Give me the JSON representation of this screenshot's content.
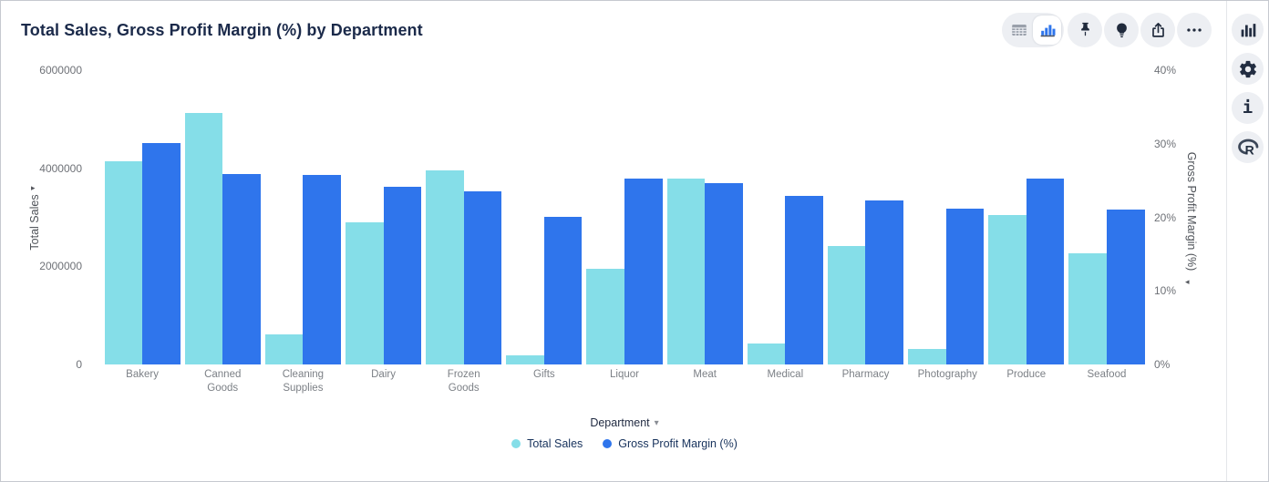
{
  "header": {
    "title": "Total Sales, Gross Profit Margin (%) by Department"
  },
  "toolbar": {
    "view_toggle": {
      "options": [
        "table",
        "chart"
      ],
      "selected": "chart"
    },
    "buttons": [
      {
        "name": "pin",
        "icon": "pin-icon"
      },
      {
        "name": "suggestions",
        "icon": "lightbulb-icon"
      },
      {
        "name": "export",
        "icon": "share-icon"
      },
      {
        "name": "more-options",
        "icon": "ellipsis-icon"
      }
    ]
  },
  "right_sidebar": {
    "buttons": [
      {
        "name": "chart-type",
        "icon": "bar-chart-icon"
      },
      {
        "name": "settings",
        "icon": "gear-icon"
      },
      {
        "name": "info",
        "icon": "info-icon"
      },
      {
        "name": "r-analytics",
        "icon": "r-logo-icon"
      }
    ]
  },
  "chart_data": {
    "type": "bar",
    "title": "Total Sales, Gross Profit Margin (%) by Department",
    "categories": [
      "Bakery",
      "Canned Goods",
      "Cleaning Supplies",
      "Dairy",
      "Frozen Goods",
      "Gifts",
      "Liquor",
      "Meat",
      "Medical",
      "Pharmacy",
      "Photography",
      "Produce",
      "Seafood"
    ],
    "series": [
      {
        "name": "Total Sales",
        "axis": "left",
        "color": "#85DEE8",
        "values": [
          4140000,
          5120000,
          615000,
          2900000,
          3960000,
          180000,
          1960000,
          3790000,
          430000,
          2420000,
          320000,
          3050000,
          2260000
        ]
      },
      {
        "name": "Gross Profit Margin (%)",
        "axis": "right",
        "color": "#2F75EC",
        "values": [
          30.1,
          25.9,
          25.8,
          24.2,
          23.5,
          20.1,
          25.3,
          24.7,
          22.9,
          22.3,
          21.2,
          25.3,
          21.0
        ]
      }
    ],
    "left_axis": {
      "label": "Total Sales",
      "min": 0,
      "max": 6000000,
      "ticks": [
        "0",
        "2000000",
        "4000000",
        "6000000"
      ]
    },
    "right_axis": {
      "label": "Gross Profit Margin (%)",
      "min": 0,
      "max": 40,
      "ticks": [
        "0%",
        "10%",
        "20%",
        "30%",
        "40%"
      ]
    },
    "xlabel": "Department",
    "legend": {
      "position": "bottom",
      "entries": [
        "Total Sales",
        "Gross Profit Margin (%)"
      ]
    },
    "grid": false
  }
}
